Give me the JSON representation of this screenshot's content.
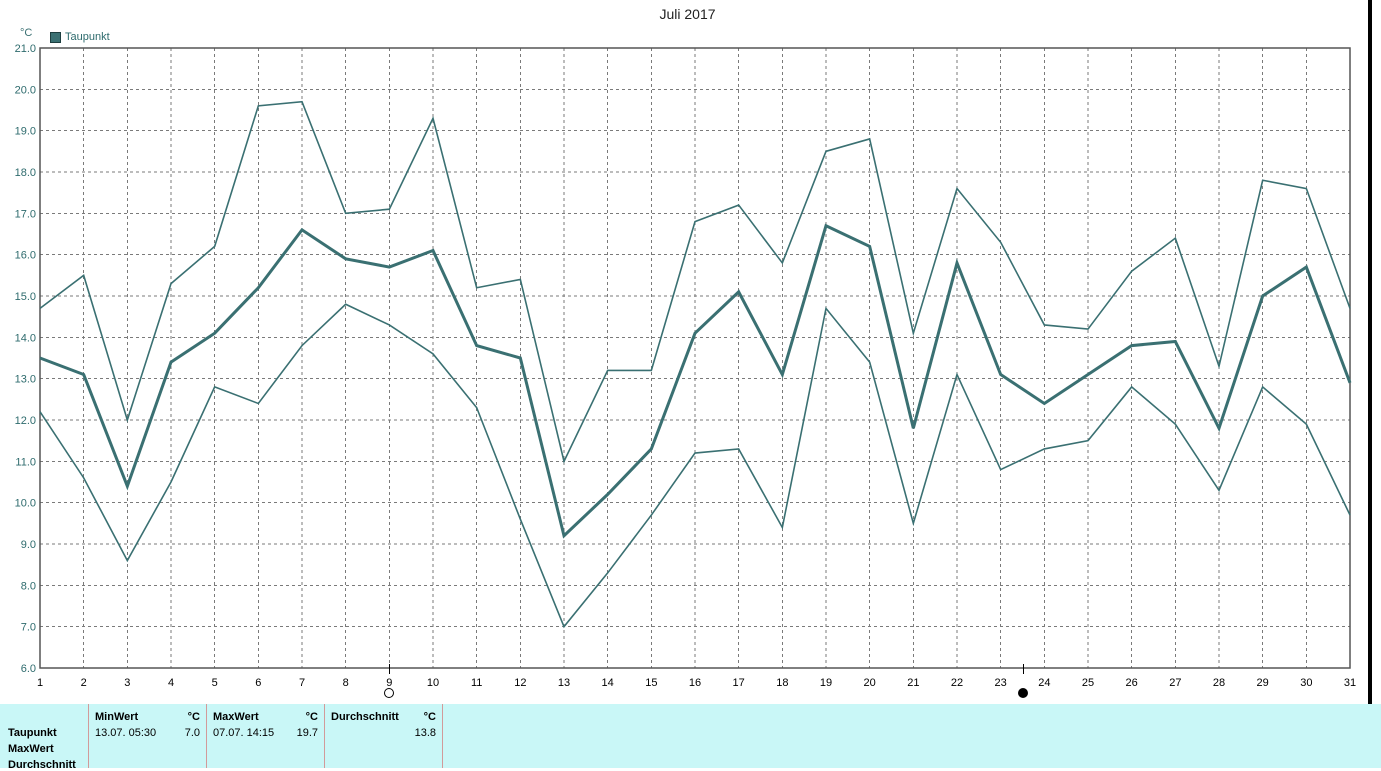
{
  "unit": "°C",
  "legend": {
    "label": "Taupunkt",
    "color": "#3a7072"
  },
  "chart_data": {
    "type": "line",
    "title": "Juli 2017",
    "xlabel": "",
    "ylabel": "°C",
    "x": [
      1,
      2,
      3,
      4,
      5,
      6,
      7,
      8,
      9,
      10,
      11,
      12,
      13,
      14,
      15,
      16,
      17,
      18,
      19,
      20,
      21,
      22,
      23,
      24,
      25,
      26,
      27,
      28,
      29,
      30,
      31
    ],
    "ylim": [
      6.0,
      21.0
    ],
    "yticks": [
      "6.0",
      "7.0",
      "8.0",
      "9.0",
      "10.0",
      "11.0",
      "12.0",
      "13.0",
      "14.0",
      "15.0",
      "16.0",
      "17.0",
      "18.0",
      "19.0",
      "20.0",
      "21.0"
    ],
    "grid": true,
    "legend_position": "top-left",
    "series": [
      {
        "name": "Taupunkt",
        "role": "mean",
        "color": "#3a7072",
        "values": [
          13.5,
          13.1,
          10.4,
          13.4,
          14.1,
          15.2,
          16.6,
          15.9,
          15.7,
          16.1,
          13.8,
          13.5,
          9.2,
          10.2,
          11.3,
          14.1,
          15.1,
          13.1,
          16.7,
          16.2,
          11.8,
          15.8,
          13.1,
          12.4,
          13.1,
          13.8,
          13.9,
          11.8,
          15.0,
          15.7,
          12.9
        ]
      },
      {
        "role": "max",
        "color": "#3a7072",
        "values": [
          14.7,
          15.5,
          12.0,
          15.3,
          16.2,
          19.6,
          19.7,
          17.0,
          17.1,
          19.3,
          15.2,
          15.4,
          11.0,
          13.2,
          13.2,
          16.8,
          17.2,
          15.8,
          18.5,
          18.8,
          14.1,
          17.6,
          16.3,
          14.3,
          14.2,
          15.6,
          16.4,
          13.3,
          17.8,
          17.6,
          14.7
        ]
      },
      {
        "role": "min",
        "color": "#3a7072",
        "values": [
          12.2,
          10.6,
          8.6,
          10.5,
          12.8,
          12.4,
          13.8,
          14.8,
          14.3,
          13.6,
          12.3,
          9.6,
          7.0,
          8.3,
          9.7,
          11.2,
          11.3,
          9.4,
          14.7,
          13.4,
          9.5,
          13.1,
          10.8,
          11.3,
          11.5,
          12.8,
          11.9,
          10.3,
          12.8,
          11.9,
          9.7
        ]
      }
    ],
    "moon_phases": [
      {
        "phase": "full",
        "day": 9.0
      },
      {
        "phase": "new",
        "day": 23.5
      }
    ]
  },
  "stats": {
    "row_labels": [
      "Taupunkt",
      "MaxWert",
      "Durchschnitt"
    ],
    "columns": [
      {
        "header": "MinWert",
        "unit": "°C",
        "date": "13.07.  05:30",
        "value": "7.0"
      },
      {
        "header": "MaxWert",
        "unit": "°C",
        "date": "07.07.  14:15",
        "value": "19.7"
      },
      {
        "header": "Durchschnitt",
        "unit": "°C",
        "date": "",
        "value": "13.8"
      }
    ]
  }
}
